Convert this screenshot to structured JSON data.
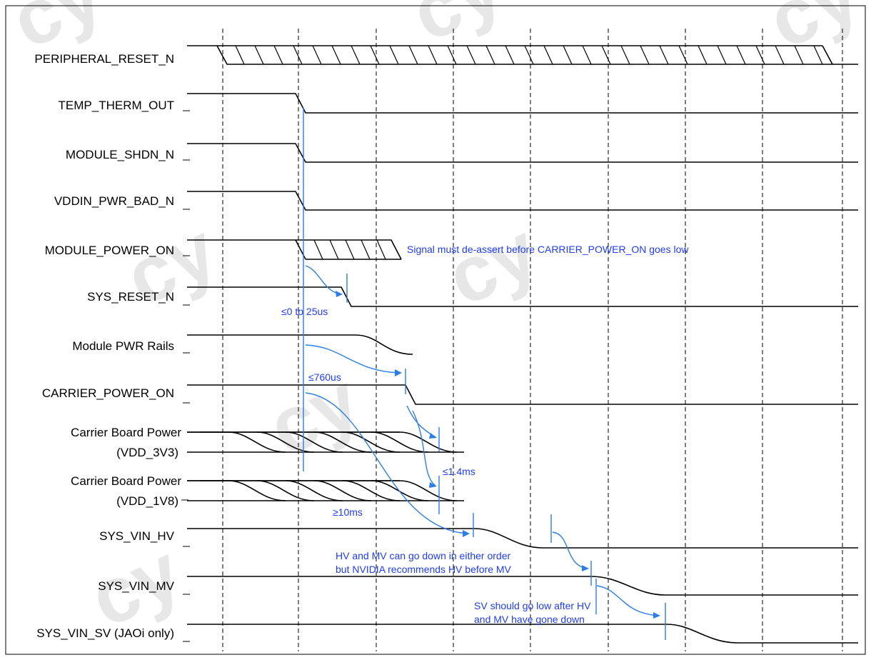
{
  "signals": [
    "PERIPHERAL_RESET_N",
    "TEMP_THERM_OUT",
    "MODULE_SHDN_N",
    "VDDIN_PWR_BAD_N",
    "MODULE_POWER_ON",
    "SYS_RESET_N",
    "Module PWR Rails",
    "CARRIER_POWER_ON",
    "Carrier Board Power",
    "(VDD_3V3)",
    "Carrier Board Power",
    "(VDD_1V8)",
    "SYS_VIN_HV",
    "SYS_VIN_MV",
    "SYS_VIN_SV (JAOi only)"
  ],
  "annotations": {
    "module_power_on_note": "Signal must de-assert before CARRIER_POWER_ON goes low",
    "sys_reset_delay": "≤0 to 25us",
    "module_rails_delay": "≤760us",
    "carrier_1v4": "≤1.4ms",
    "carrier_10ms": "≥10ms",
    "hv_mv_note_line1": "HV and MV can go down in either order",
    "hv_mv_note_line2": "but NVIDIA recommends HV before MV",
    "sv_note_line1": "SV should go low after HV",
    "sv_note_line2": "and MV have gone down"
  },
  "watermark": "cy"
}
